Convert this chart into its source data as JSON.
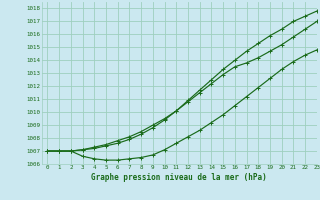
{
  "title": "Graphe pression niveau de la mer (hPa)",
  "bg_color": "#cbe8f0",
  "grid_color": "#9ecfbe",
  "line_color": "#1a6b1a",
  "xlim": [
    -0.5,
    23
  ],
  "ylim": [
    1006,
    1018.5
  ],
  "xticks": [
    0,
    1,
    2,
    3,
    4,
    5,
    6,
    7,
    8,
    9,
    10,
    11,
    12,
    13,
    14,
    15,
    16,
    17,
    18,
    19,
    20,
    21,
    22,
    23
  ],
  "yticks": [
    1006,
    1007,
    1008,
    1009,
    1010,
    1011,
    1012,
    1013,
    1014,
    1015,
    1016,
    1017,
    1018
  ],
  "series1": [
    1007.0,
    1007.0,
    1007.0,
    1007.1,
    1007.2,
    1007.4,
    1007.6,
    1007.9,
    1008.3,
    1008.8,
    1009.4,
    1010.1,
    1010.9,
    1011.7,
    1012.5,
    1013.3,
    1014.0,
    1014.7,
    1015.3,
    1015.9,
    1016.4,
    1017.0,
    1017.4,
    1017.8
  ],
  "series2": [
    1007.0,
    1007.0,
    1007.0,
    1007.1,
    1007.3,
    1007.5,
    1007.8,
    1008.1,
    1008.5,
    1009.0,
    1009.5,
    1010.1,
    1010.8,
    1011.5,
    1012.2,
    1012.9,
    1013.5,
    1013.8,
    1014.2,
    1014.7,
    1015.2,
    1015.8,
    1016.4,
    1017.0
  ],
  "series3": [
    1007.0,
    1007.0,
    1007.0,
    1006.6,
    1006.4,
    1006.3,
    1006.3,
    1006.4,
    1006.5,
    1006.7,
    1007.1,
    1007.6,
    1008.1,
    1008.6,
    1009.2,
    1009.8,
    1010.5,
    1011.2,
    1011.9,
    1012.6,
    1013.3,
    1013.9,
    1014.4,
    1014.8
  ]
}
